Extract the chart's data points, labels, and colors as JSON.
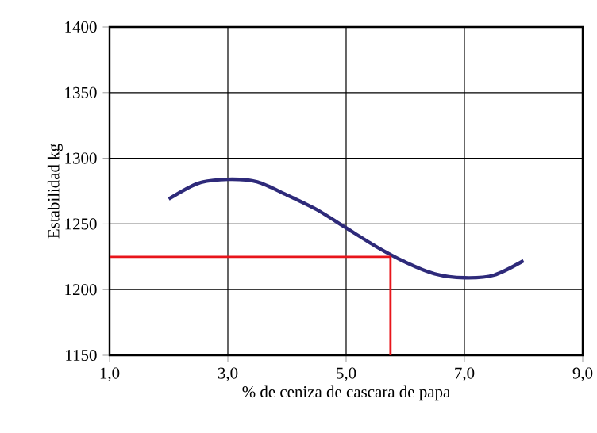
{
  "chart_data": {
    "type": "line",
    "xlabel": "%  de ceniza de cascara de papa",
    "ylabel": "Estabilidad  kg",
    "xlim": [
      1,
      9
    ],
    "ylim": [
      1150,
      1400
    ],
    "xticks": [
      {
        "value": 1,
        "label": "1,0"
      },
      {
        "value": 3,
        "label": "3,0"
      },
      {
        "value": 5,
        "label": "5,0"
      },
      {
        "value": 7,
        "label": "7,0"
      },
      {
        "value": 9,
        "label": "9,0"
      }
    ],
    "yticks": [
      1150,
      1200,
      1250,
      1300,
      1350,
      1400
    ],
    "grid": true,
    "marker": "none",
    "line_style": "solid",
    "series": [
      {
        "color": "#2e2a7a",
        "x": [
          2,
          2.5,
          3,
          3.5,
          4,
          4.5,
          5,
          5.5,
          6,
          6.5,
          7,
          7.5,
          8
        ],
        "values": [
          1269,
          1281,
          1284,
          1282,
          1272,
          1261,
          1247,
          1233,
          1221,
          1212,
          1209,
          1211,
          1222
        ]
      },
      {
        "color": "#e8151b",
        "x": [
          1,
          5.75,
          5.75
        ],
        "values": [
          1225,
          1225,
          1150
        ]
      }
    ]
  }
}
